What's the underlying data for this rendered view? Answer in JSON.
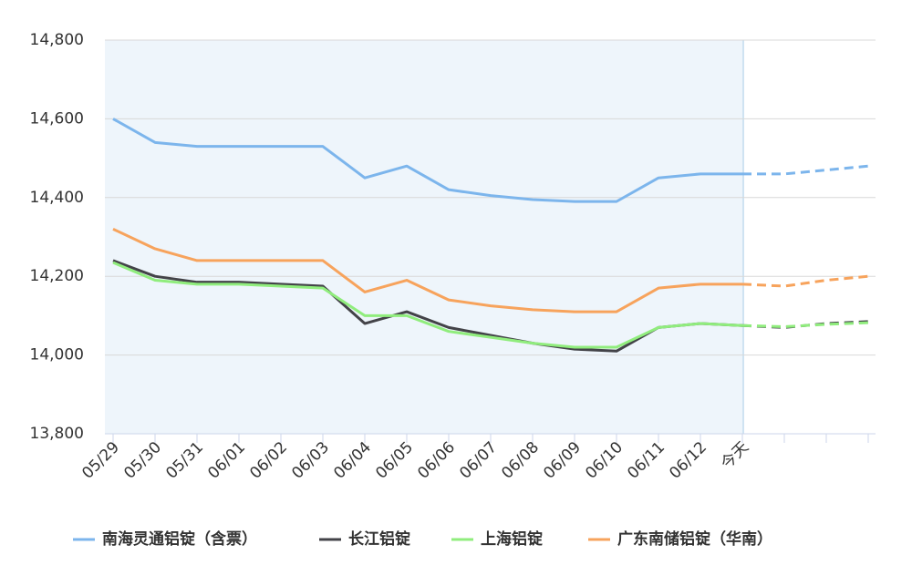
{
  "chart_data": {
    "type": "line",
    "categories": [
      "05/29",
      "05/30",
      "05/31",
      "06/01",
      "06/02",
      "06/03",
      "06/04",
      "06/05",
      "06/06",
      "06/07",
      "06/08",
      "06/09",
      "06/10",
      "06/11",
      "06/12",
      "今天",
      null,
      null,
      null
    ],
    "series": [
      {
        "name": "南海灵通铝锭（含票）",
        "color": "#7cb5ec",
        "values": [
          14600,
          14540,
          14530,
          14530,
          14530,
          14530,
          14450,
          14480,
          14420,
          14405,
          14395,
          14390,
          14390,
          14450,
          14460,
          14460,
          null,
          null,
          null
        ],
        "forecast": [
          null,
          null,
          null,
          null,
          null,
          null,
          null,
          null,
          null,
          null,
          null,
          null,
          null,
          null,
          null,
          14460,
          14460,
          14470,
          14480
        ]
      },
      {
        "name": "长江铝锭",
        "color": "#434348",
        "values": [
          14240,
          14200,
          14185,
          14185,
          14180,
          14175,
          14080,
          14110,
          14070,
          14050,
          14030,
          14015,
          14010,
          14070,
          14080,
          14075,
          null,
          null,
          null
        ],
        "forecast": [
          null,
          null,
          null,
          null,
          null,
          null,
          null,
          null,
          null,
          null,
          null,
          null,
          null,
          null,
          null,
          14075,
          14070,
          14080,
          14085
        ]
      },
      {
        "name": "上海铝锭",
        "color": "#90ed7d",
        "values": [
          14235,
          14190,
          14180,
          14180,
          14175,
          14170,
          14100,
          14100,
          14060,
          14045,
          14030,
          14020,
          14020,
          14070,
          14080,
          14075,
          null,
          null,
          null
        ],
        "forecast": [
          null,
          null,
          null,
          null,
          null,
          null,
          null,
          null,
          null,
          null,
          null,
          null,
          null,
          null,
          null,
          14075,
          14072,
          14078,
          14082
        ]
      },
      {
        "name": "广东南储铝锭（华南）",
        "color": "#f7a35c",
        "values": [
          14320,
          14270,
          14240,
          14240,
          14240,
          14240,
          14160,
          14190,
          14140,
          14125,
          14115,
          14110,
          14110,
          14170,
          14180,
          14180,
          null,
          null,
          null
        ],
        "forecast": [
          null,
          null,
          null,
          null,
          null,
          null,
          null,
          null,
          null,
          null,
          null,
          null,
          null,
          null,
          null,
          14180,
          14175,
          14190,
          14200
        ]
      }
    ],
    "ylim": [
      13800,
      14800
    ],
    "yticks": [
      {
        "value": 13800,
        "label": "13,800"
      },
      {
        "value": 14000,
        "label": "14,000"
      },
      {
        "value": 14200,
        "label": "14,200"
      },
      {
        "value": 14400,
        "label": "14,400"
      },
      {
        "value": 14600,
        "label": "14,600"
      },
      {
        "value": 14800,
        "label": "14,800"
      }
    ],
    "grid": true
  }
}
